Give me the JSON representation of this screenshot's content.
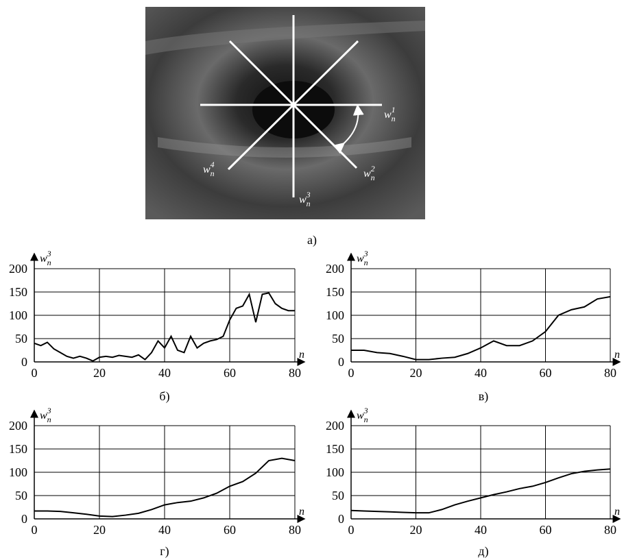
{
  "image": {
    "caption": "а)",
    "labels": [
      {
        "text": "w",
        "sub": "n",
        "sup": "1"
      },
      {
        "text": "w",
        "sub": "n",
        "sup": "2"
      },
      {
        "text": "w",
        "sub": "n",
        "sup": "3"
      },
      {
        "text": "w",
        "sub": "n",
        "sup": "4"
      }
    ]
  },
  "chart_data": [
    {
      "type": "line",
      "caption": "б)",
      "ylabel": {
        "text": "w",
        "sub": "n",
        "sup": "3"
      },
      "xlabel": "n",
      "color": "#000000",
      "grid": true,
      "xlim": [
        0,
        80
      ],
      "ylim": [
        0,
        200
      ],
      "xticks": [
        0,
        20,
        40,
        60,
        80
      ],
      "yticks": [
        0,
        50,
        100,
        150,
        200
      ],
      "x": [
        0,
        2,
        4,
        6,
        8,
        10,
        12,
        14,
        16,
        18,
        20,
        22,
        24,
        26,
        28,
        30,
        32,
        34,
        36,
        38,
        40,
        42,
        44,
        46,
        48,
        50,
        52,
        54,
        56,
        58,
        60,
        62,
        64,
        66,
        68,
        70,
        72,
        74,
        76,
        78,
        80
      ],
      "values": [
        40,
        35,
        42,
        28,
        20,
        12,
        8,
        12,
        8,
        2,
        10,
        12,
        10,
        14,
        12,
        10,
        15,
        5,
        20,
        45,
        30,
        55,
        25,
        20,
        55,
        30,
        40,
        45,
        48,
        55,
        90,
        115,
        120,
        145,
        85,
        145,
        148,
        125,
        115,
        110,
        110
      ]
    },
    {
      "type": "line",
      "caption": "в)",
      "ylabel": {
        "text": "w",
        "sub": "n",
        "sup": "3"
      },
      "xlabel": "n",
      "color": "#000000",
      "grid": true,
      "xlim": [
        0,
        80
      ],
      "ylim": [
        0,
        200
      ],
      "xticks": [
        0,
        20,
        40,
        60,
        80
      ],
      "yticks": [
        0,
        50,
        100,
        150,
        200
      ],
      "x": [
        0,
        4,
        8,
        12,
        16,
        20,
        24,
        28,
        32,
        36,
        40,
        44,
        48,
        52,
        56,
        60,
        64,
        68,
        72,
        76,
        80
      ],
      "values": [
        25,
        25,
        20,
        18,
        12,
        5,
        5,
        8,
        10,
        18,
        30,
        45,
        35,
        35,
        45,
        65,
        100,
        112,
        118,
        135,
        140
      ]
    },
    {
      "type": "line",
      "caption": "г)",
      "ylabel": {
        "text": "w",
        "sub": "n",
        "sup": "3"
      },
      "xlabel": "n",
      "color": "#000000",
      "grid": true,
      "xlim": [
        0,
        80
      ],
      "ylim": [
        0,
        200
      ],
      "xticks": [
        0,
        20,
        40,
        60,
        80
      ],
      "yticks": [
        0,
        50,
        100,
        150,
        200
      ],
      "x": [
        0,
        4,
        8,
        12,
        16,
        20,
        24,
        28,
        32,
        36,
        40,
        44,
        48,
        52,
        56,
        60,
        64,
        68,
        72,
        76,
        80
      ],
      "values": [
        17,
        17,
        16,
        13,
        10,
        6,
        5,
        8,
        12,
        20,
        30,
        35,
        38,
        45,
        55,
        70,
        80,
        98,
        125,
        130,
        125
      ]
    },
    {
      "type": "line",
      "caption": "д)",
      "ylabel": {
        "text": "w",
        "sub": "n",
        "sup": "3"
      },
      "xlabel": "n",
      "color": "#000000",
      "grid": true,
      "xlim": [
        0,
        80
      ],
      "ylim": [
        0,
        200
      ],
      "xticks": [
        0,
        20,
        40,
        60,
        80
      ],
      "yticks": [
        0,
        50,
        100,
        150,
        200
      ],
      "x": [
        0,
        4,
        8,
        12,
        16,
        20,
        24,
        28,
        32,
        36,
        40,
        44,
        48,
        52,
        56,
        60,
        64,
        68,
        72,
        76,
        80
      ],
      "values": [
        18,
        17,
        16,
        15,
        14,
        13,
        13,
        20,
        30,
        38,
        45,
        52,
        58,
        65,
        70,
        78,
        88,
        97,
        102,
        105,
        107
      ]
    }
  ]
}
